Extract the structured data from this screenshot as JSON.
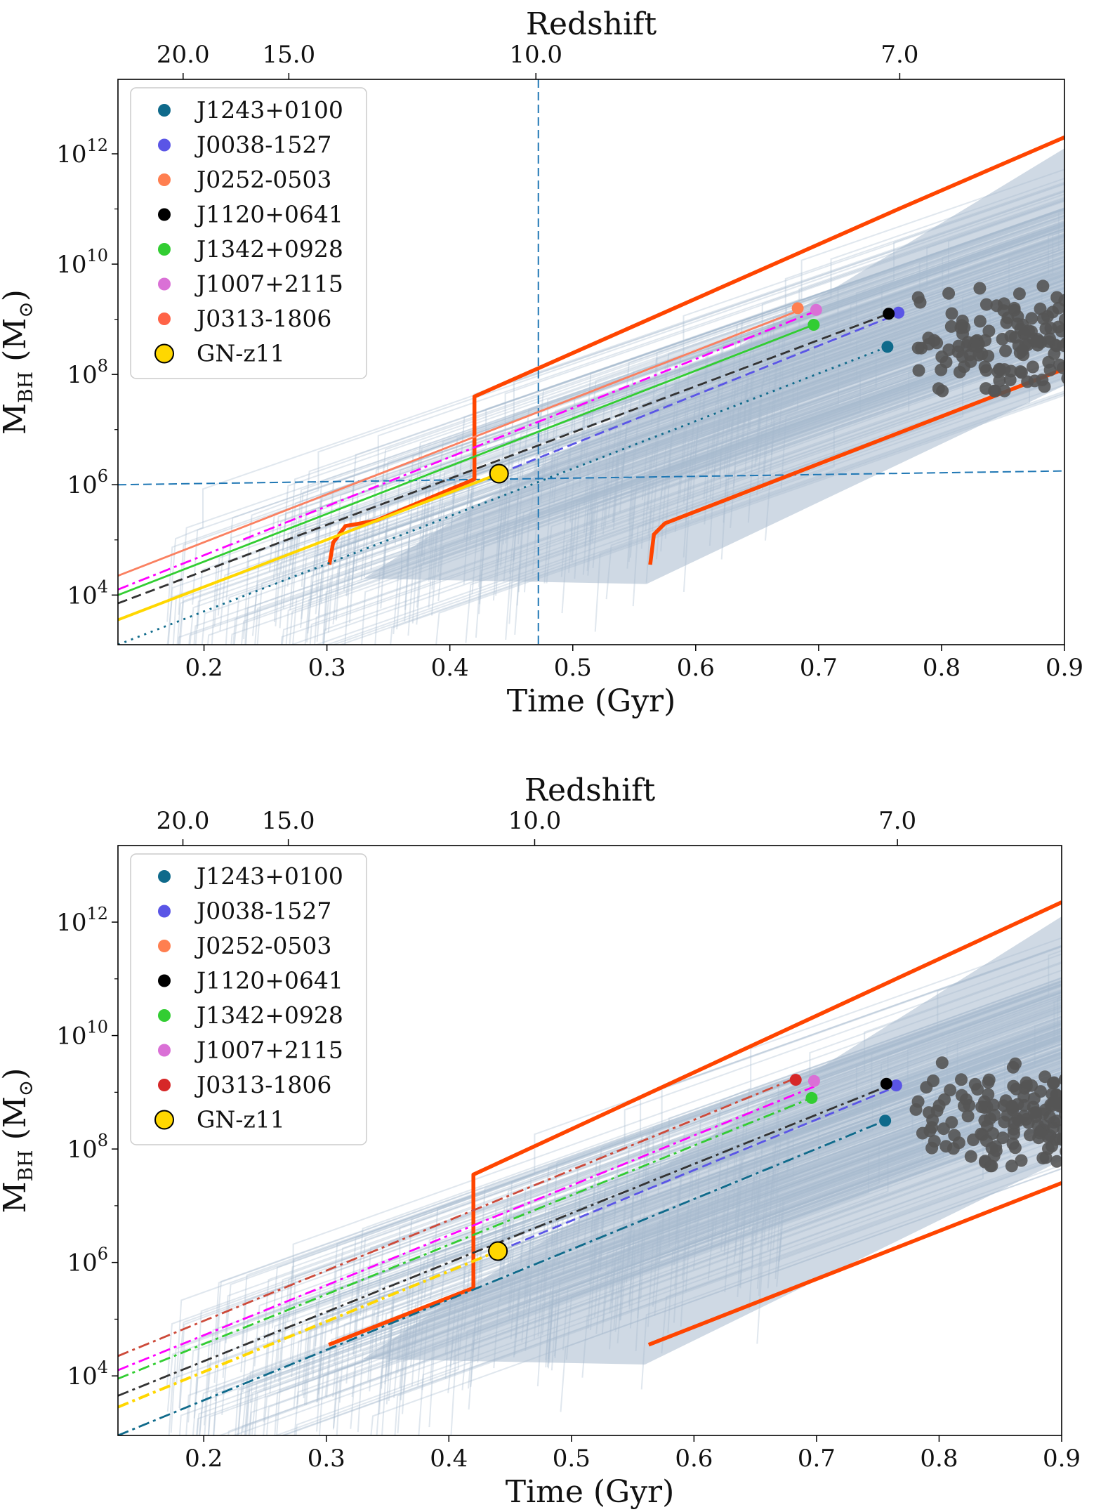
{
  "colors": {
    "J1243+0100": "#0f6a8b",
    "J0038-1527": "#5a55e6",
    "J0252-0503": "#ff7f50",
    "J1120+0641": "#000000",
    "J1342+0928": "#32cd32",
    "J1007+2115": "#da70d6",
    "J0313-1806_top": "#ff6347",
    "J0313-1806_bottom": "#d62728",
    "GN-z11": "#ffd700",
    "envelope": "#ff4500",
    "cloud": "#a7bacd",
    "scatter": "#555555",
    "guide": "#1f77b4"
  },
  "chart_data": [
    {
      "type": "line",
      "panel": "top",
      "xlabel": "Time (Gyr)",
      "ylabel_main": "M",
      "ylabel_sub": "BH",
      "ylabel_unit": " (M",
      "ylabel_unit_sub": "⊙",
      "ylabel_close": ")",
      "top_axis_label": "Redshift",
      "top_ticks": [
        {
          "label": "20.0",
          "t": 0.183
        },
        {
          "label": "15.0",
          "t": 0.269
        },
        {
          "label": "10.0",
          "t": 0.47
        },
        {
          "label": "7.0",
          "t": 0.766
        }
      ],
      "xlim": [
        0.13,
        0.9
      ],
      "ylim_log10": [
        3.1,
        13.35
      ],
      "xticks": [
        0.2,
        0.3,
        0.4,
        0.5,
        0.6,
        0.7,
        0.8,
        0.9
      ],
      "xtick_labels": [
        "0.2",
        "0.3",
        "0.4",
        "0.5",
        "0.6",
        "0.7",
        "0.8",
        "0.9"
      ],
      "yticks_log10": [
        4,
        6,
        8,
        10,
        12
      ],
      "ytick_exponents": [
        "4",
        "6",
        "8",
        "10",
        "12"
      ],
      "ytick_base": "10",
      "legend": [
        {
          "name": "J1243+0100",
          "color": "#0f6a8b"
        },
        {
          "name": "J0038-1527",
          "color": "#5a55e6"
        },
        {
          "name": "J0252-0503",
          "color": "#ff7f50"
        },
        {
          "name": "J1120+0641",
          "color": "#000000"
        },
        {
          "name": "J1342+0928",
          "color": "#32cd32"
        },
        {
          "name": "J1007+2115",
          "color": "#da70d6"
        },
        {
          "name": "J0313-1806",
          "color": "#ff6347"
        },
        {
          "name": "GN-z11",
          "color": "#ffd700",
          "edge": "#000000"
        }
      ],
      "series": [
        {
          "name": "J1243+0100",
          "color": "#0f6a8b",
          "dash": "dotted",
          "x": [
            0.13,
            0.756
          ],
          "log10_mass": [
            3.1,
            8.5
          ]
        },
        {
          "name": "J0038-1527",
          "color": "#5a55e6",
          "dash": "dashed",
          "x": [
            0.44,
            0.765
          ],
          "log10_mass": [
            6.2,
            9.1
          ]
        },
        {
          "name": "J0252-0503",
          "color": "#fa8060",
          "dash": "solid",
          "x": [
            0.13,
            0.683
          ],
          "log10_mass": [
            4.35,
            9.15
          ]
        },
        {
          "name": "J1120+0641",
          "color": "#333333",
          "dash": "dashed",
          "x": [
            0.13,
            0.757
          ],
          "log10_mass": [
            3.85,
            9.1
          ]
        },
        {
          "name": "J1342+0928",
          "color": "#32cd32",
          "dash": "solid",
          "x": [
            0.13,
            0.696
          ],
          "log10_mass": [
            4.0,
            8.9
          ]
        },
        {
          "name": "J1007+2115",
          "color": "#ff00ff",
          "dash": "dashdot",
          "x": [
            0.13,
            0.698
          ],
          "log10_mass": [
            4.1,
            9.15
          ]
        },
        {
          "name": "GN-z11",
          "color": "#ffd700",
          "dash": "solid",
          "x": [
            0.13,
            0.44
          ],
          "log10_mass": [
            3.55,
            6.2
          ]
        }
      ],
      "endpoints": [
        {
          "name": "J1243+0100",
          "t": 0.756,
          "log10_mass": 8.5,
          "color": "#0f6a8b"
        },
        {
          "name": "J0038-1527",
          "t": 0.765,
          "log10_mass": 9.12,
          "color": "#5a55e6"
        },
        {
          "name": "J0252-0503",
          "t": 0.683,
          "log10_mass": 9.2,
          "color": "#ff7f50"
        },
        {
          "name": "J1120+0641",
          "t": 0.757,
          "log10_mass": 9.1,
          "color": "#000000"
        },
        {
          "name": "J1342+0928",
          "t": 0.696,
          "log10_mass": 8.9,
          "color": "#32cd32"
        },
        {
          "name": "J1007+2115",
          "t": 0.698,
          "log10_mass": 9.17,
          "color": "#da70d6"
        },
        {
          "name": "GN-z11",
          "t": 0.44,
          "log10_mass": 6.2,
          "color": "#ffd700",
          "edge": "#000000",
          "large": true
        }
      ],
      "envelope_upper": {
        "x": [
          0.302,
          0.305,
          0.315,
          0.34,
          0.42,
          0.42,
          0.765,
          0.9
        ],
        "log10_mass": [
          4.55,
          4.95,
          5.25,
          5.35,
          6.1,
          7.6,
          11.0,
          12.3
        ]
      },
      "envelope_lower": {
        "x": [
          0.563,
          0.566,
          0.575,
          0.9
        ],
        "log10_mass": [
          4.55,
          5.1,
          5.3,
          8.1
        ]
      },
      "guides": {
        "vertical_t": 0.472,
        "horizontal_log10_mass_left": 6.0,
        "horizontal_log10_mass_right": 6.25,
        "color": "#1f77b4"
      },
      "observed_quasars_region": {
        "t_range": [
          0.78,
          0.9
        ],
        "log10_mass_range": [
          7.7,
          10.1
        ]
      }
    },
    {
      "type": "line",
      "panel": "bottom",
      "xlabel": "Time (Gyr)",
      "ylabel_main": "M",
      "ylabel_sub": "BH",
      "ylabel_unit": " (M",
      "ylabel_unit_sub": "⊙",
      "ylabel_close": ")",
      "top_axis_label": "Redshift",
      "top_ticks": [
        {
          "label": "20.0",
          "t": 0.183
        },
        {
          "label": "15.0",
          "t": 0.269
        },
        {
          "label": "10.0",
          "t": 0.47
        },
        {
          "label": "7.0",
          "t": 0.766
        }
      ],
      "xlim": [
        0.13,
        0.9
      ],
      "ylim_log10": [
        2.95,
        13.35
      ],
      "xticks": [
        0.2,
        0.3,
        0.4,
        0.5,
        0.6,
        0.7,
        0.8,
        0.9
      ],
      "xtick_labels": [
        "0.2",
        "0.3",
        "0.4",
        "0.5",
        "0.6",
        "0.7",
        "0.8",
        "0.9"
      ],
      "yticks_log10": [
        4,
        6,
        8,
        10,
        12
      ],
      "ytick_exponents": [
        "4",
        "6",
        "8",
        "10",
        "12"
      ],
      "ytick_base": "10",
      "legend": [
        {
          "name": "J1243+0100",
          "color": "#0f6a8b"
        },
        {
          "name": "J0038-1527",
          "color": "#5a55e6"
        },
        {
          "name": "J0252-0503",
          "color": "#ff7f50"
        },
        {
          "name": "J1120+0641",
          "color": "#000000"
        },
        {
          "name": "J1342+0928",
          "color": "#32cd32"
        },
        {
          "name": "J1007+2115",
          "color": "#da70d6"
        },
        {
          "name": "J0313-1806",
          "color": "#d62728"
        },
        {
          "name": "GN-z11",
          "color": "#ffd700",
          "edge": "#000000"
        }
      ],
      "series": [
        {
          "name": "J1243+0100",
          "color": "#0f6a8b",
          "dash": "dashdot",
          "x": [
            0.13,
            0.756
          ],
          "log10_mass": [
            2.95,
            8.5
          ]
        },
        {
          "name": "J0038-1527",
          "color": "#5a55e6",
          "dash": "dashed",
          "x": [
            0.44,
            0.765
          ],
          "log10_mass": [
            6.2,
            9.1
          ]
        },
        {
          "name": "J1120+0641",
          "color": "#333333",
          "dash": "dashdot",
          "x": [
            0.13,
            0.757
          ],
          "log10_mass": [
            3.65,
            9.1
          ]
        },
        {
          "name": "J1342+0928",
          "color": "#32cd32",
          "dash": "dashdot",
          "x": [
            0.13,
            0.696
          ],
          "log10_mass": [
            3.95,
            8.9
          ]
        },
        {
          "name": "J1007+2115",
          "color": "#ff00ff",
          "dash": "dashdot",
          "x": [
            0.13,
            0.698
          ],
          "log10_mass": [
            4.1,
            9.1
          ]
        },
        {
          "name": "J0313-1806",
          "color": "#cd4a3a",
          "dash": "dashdot",
          "x": [
            0.13,
            0.683
          ],
          "log10_mass": [
            4.35,
            9.25
          ]
        },
        {
          "name": "GN-z11",
          "color": "#ffd700",
          "dash": "dashdot",
          "x": [
            0.13,
            0.44
          ],
          "log10_mass": [
            3.45,
            6.2
          ]
        }
      ],
      "endpoints": [
        {
          "name": "J1243+0100",
          "t": 0.756,
          "log10_mass": 8.5,
          "color": "#0f6a8b"
        },
        {
          "name": "J0038-1527",
          "t": 0.765,
          "log10_mass": 9.12,
          "color": "#5a55e6"
        },
        {
          "name": "J1120+0641",
          "t": 0.757,
          "log10_mass": 9.15,
          "color": "#000000"
        },
        {
          "name": "J1342+0928",
          "t": 0.696,
          "log10_mass": 8.9,
          "color": "#32cd32"
        },
        {
          "name": "J1007+2115",
          "t": 0.698,
          "log10_mass": 9.2,
          "color": "#da70d6"
        },
        {
          "name": "J0313-1806",
          "t": 0.683,
          "log10_mass": 9.22,
          "color": "#d62728"
        },
        {
          "name": "GN-z11",
          "t": 0.44,
          "log10_mass": 6.2,
          "color": "#ffd700",
          "edge": "#000000",
          "large": true
        }
      ],
      "envelope_upper": {
        "x": [
          0.302,
          0.42,
          0.42,
          0.765,
          0.9
        ],
        "log10_mass": [
          4.55,
          5.55,
          7.55,
          11.0,
          12.35
        ]
      },
      "envelope_lower": {
        "x": [
          0.563,
          0.9
        ],
        "log10_mass": [
          4.55,
          7.4
        ]
      },
      "observed_quasars_region": {
        "t_range": [
          0.78,
          0.9
        ],
        "log10_mass_range": [
          7.7,
          10.1
        ]
      }
    }
  ]
}
